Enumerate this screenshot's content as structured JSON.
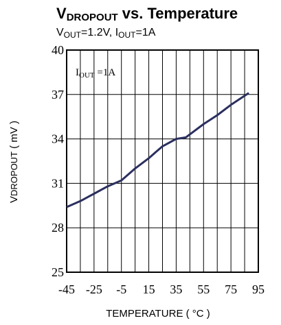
{
  "chart_data": {
    "type": "line",
    "title": {
      "main": "V",
      "main_sub": "DROPOUT",
      "main_rest": " vs. Temperature"
    },
    "subtitle": {
      "v": "V",
      "v_sub": "OUT",
      "v_rest": "=1.2V, I",
      "i_sub": "OUT",
      "i_rest": "=1A"
    },
    "inner_label": {
      "main": "I",
      "sub": "OUT",
      "rest": " =1A"
    },
    "xlabel": "TEMPERATURE ( °C )",
    "ylabel": {
      "main": "V",
      "sub": "DROPOUT",
      "rest": " ( mV )"
    },
    "xlim": [
      -45,
      95
    ],
    "ylim": [
      25,
      40
    ],
    "x_ticks": [
      -45,
      -25,
      -5,
      15,
      35,
      55,
      75,
      95
    ],
    "y_ticks": [
      25,
      28,
      31,
      34,
      37,
      40
    ],
    "grid": true,
    "series": [
      {
        "color": "#2b2f5e",
        "x": [
          -45,
          -35,
          -25,
          -15,
          -5,
          5,
          15,
          20,
          25,
          35,
          42,
          55,
          65,
          75,
          88
        ],
        "y": [
          29.4,
          29.8,
          30.3,
          30.8,
          31.2,
          32.0,
          32.7,
          33.1,
          33.5,
          34.0,
          34.1,
          35.0,
          35.6,
          36.3,
          37.1
        ]
      }
    ]
  }
}
